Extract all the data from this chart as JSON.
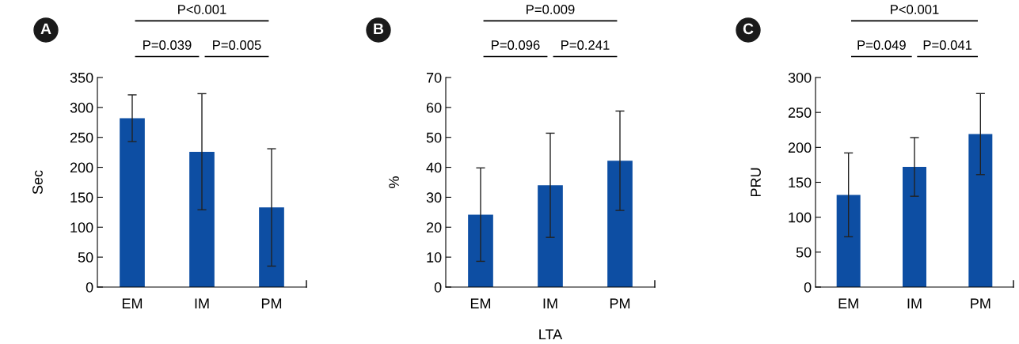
{
  "chart_data": [
    {
      "type": "bar",
      "ylabel": "Sec",
      "categories": [
        "EM",
        "IM",
        "PM"
      ],
      "values": [
        282,
        226,
        133
      ],
      "errors": [
        39,
        97,
        98
      ],
      "color": "#0d4ea3",
      "ylim": [
        0,
        350
      ],
      "yticks": [
        0,
        50,
        100,
        150,
        200,
        250,
        300,
        350
      ],
      "grid": false,
      "legend": false,
      "annotations": [
        "A",
        "P<0.001",
        "P=0.039",
        "P=0.005"
      ]
    },
    {
      "type": "bar",
      "ylabel": "%",
      "xlabel": "LTA",
      "categories": [
        "EM",
        "IM",
        "PM"
      ],
      "values": [
        24.2,
        34,
        42.2
      ],
      "errors": [
        15.6,
        17.4,
        16.6
      ],
      "color": "#0d4ea3",
      "ylim": [
        0,
        70
      ],
      "yticks": [
        0,
        10,
        20,
        30,
        40,
        50,
        60,
        70
      ],
      "grid": false,
      "legend": false,
      "annotations": [
        "B",
        "P=0.009",
        "P=0.096",
        "P=0.241"
      ]
    },
    {
      "type": "bar",
      "ylabel": "PRU",
      "categories": [
        "EM",
        "IM",
        "PM"
      ],
      "values": [
        132,
        172,
        219
      ],
      "errors": [
        60,
        42,
        58
      ],
      "color": "#0d4ea3",
      "ylim": [
        0,
        300
      ],
      "yticks": [
        0,
        50,
        100,
        150,
        200,
        250,
        300
      ],
      "grid": false,
      "legend": false,
      "annotations": [
        "C",
        "P<0.001",
        "P=0.049",
        "P=0.041"
      ]
    }
  ]
}
